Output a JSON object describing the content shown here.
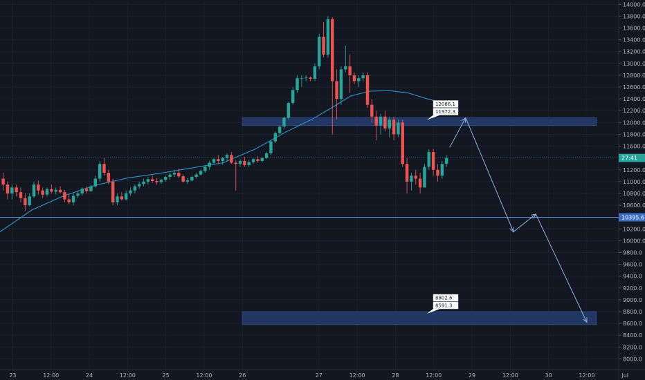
{
  "chart_data": {
    "type": "candlestick",
    "price_axis": {
      "min": 7900,
      "max": 14050,
      "ticks": [
        8000,
        8200,
        8400,
        8600,
        8800,
        9000,
        9200,
        9400,
        9600,
        9800,
        10000,
        10200,
        10400,
        10600,
        10800,
        11000,
        11200,
        11400,
        11600,
        11800,
        12000,
        12200,
        12400,
        12600,
        12800,
        13000,
        13200,
        13400,
        13600,
        13800,
        14000
      ],
      "tick_labels": [
        "8000.0",
        "8200.0",
        "8400.0",
        "8600.0",
        "8800.0",
        "9000.0",
        "9200.0",
        "9400.0",
        "9600.0",
        "9800.0",
        "10000.0",
        "10200.0",
        "10400.0",
        "10600.0",
        "10800.0",
        "11000.0",
        "11200.0",
        "11400.0",
        "11600.0",
        "11800.0",
        "12000.0",
        "12200.0",
        "12400.0",
        "12600.0",
        "12800.0",
        "13000.0",
        "13200.0",
        "13400.0",
        "13600.0",
        "13800.0",
        "14000.0"
      ]
    },
    "time_axis": {
      "unit": "hours since Jun 23 00:00",
      "min": -4,
      "max": 190,
      "ticks": [
        {
          "t": 0,
          "label": "23"
        },
        {
          "t": 12,
          "label": "12:00"
        },
        {
          "t": 24,
          "label": "24"
        },
        {
          "t": 36,
          "label": "12:00"
        },
        {
          "t": 48,
          "label": "25"
        },
        {
          "t": 60,
          "label": "12:00"
        },
        {
          "t": 72,
          "label": "26"
        },
        {
          "t": 96,
          "label": "27"
        },
        {
          "t": 108,
          "label": "12:00"
        },
        {
          "t": 120,
          "label": "28"
        },
        {
          "t": 132,
          "label": "12:00"
        },
        {
          "t": 144,
          "label": "29"
        },
        {
          "t": 156,
          "label": "12:00"
        },
        {
          "t": 168,
          "label": "30"
        },
        {
          "t": 180,
          "label": "12:00"
        },
        {
          "t": 192,
          "label": "Jul"
        }
      ]
    },
    "current_price_label": "27:41",
    "current_price": 11400,
    "support_label": "10395.6",
    "support_price": 10395.6,
    "zones": [
      {
        "from_t": 72,
        "to_t": 183,
        "low": 11950,
        "high": 12080,
        "labels": [
          "12086.1",
          "11972.3"
        ]
      },
      {
        "from_t": 72,
        "to_t": 183,
        "low": 8580,
        "high": 8800,
        "labels": [
          "8802.6",
          "8591.3"
        ]
      }
    ],
    "projection_path": [
      {
        "t": 137,
        "p": 11580
      },
      {
        "t": 142,
        "p": 12080
      },
      {
        "t": 157,
        "p": 10150
      },
      {
        "t": 164,
        "p": 10450
      },
      {
        "t": 180,
        "p": 8620
      }
    ],
    "moving_average": [
      {
        "t": -4,
        "p": 10150
      },
      {
        "t": 6,
        "p": 10520
      },
      {
        "t": 16,
        "p": 10760
      },
      {
        "t": 26,
        "p": 10940
      },
      {
        "t": 36,
        "p": 11060
      },
      {
        "t": 46,
        "p": 11140
      },
      {
        "t": 56,
        "p": 11230
      },
      {
        "t": 66,
        "p": 11320
      },
      {
        "t": 76,
        "p": 11550
      },
      {
        "t": 86,
        "p": 11850
      },
      {
        "t": 94,
        "p": 12060
      },
      {
        "t": 100,
        "p": 12250
      },
      {
        "t": 106,
        "p": 12450
      },
      {
        "t": 112,
        "p": 12530
      },
      {
        "t": 118,
        "p": 12540
      },
      {
        "t": 124,
        "p": 12500
      },
      {
        "t": 130,
        "p": 12400
      },
      {
        "t": 136,
        "p": 12320
      }
    ],
    "candles": [
      [
        11050,
        11150,
        10850,
        10950
      ],
      [
        10950,
        11000,
        10700,
        10800
      ],
      [
        10800,
        10950,
        10700,
        10900
      ],
      [
        10900,
        10950,
        10750,
        10820
      ],
      [
        10820,
        10900,
        10650,
        10720
      ],
      [
        10720,
        10800,
        10500,
        10600
      ],
      [
        10600,
        10800,
        10580,
        10750
      ],
      [
        10750,
        11000,
        10720,
        10950
      ],
      [
        10950,
        11020,
        10780,
        10850
      ],
      [
        10850,
        10900,
        10720,
        10780
      ],
      [
        10780,
        10900,
        10750,
        10870
      ],
      [
        10870,
        10950,
        10800,
        10830
      ],
      [
        10830,
        10900,
        10780,
        10860
      ],
      [
        10860,
        10920,
        10800,
        10820
      ],
      [
        10820,
        10860,
        10650,
        10700
      ],
      [
        10700,
        10780,
        10620,
        10650
      ],
      [
        10650,
        10800,
        10600,
        10760
      ],
      [
        10760,
        10850,
        10720,
        10800
      ],
      [
        10800,
        10900,
        10760,
        10880
      ],
      [
        10880,
        10920,
        10800,
        10840
      ],
      [
        10840,
        10950,
        10820,
        10920
      ],
      [
        10920,
        11100,
        10900,
        11050
      ],
      [
        11050,
        11350,
        11000,
        11300
      ],
      [
        11300,
        11400,
        11100,
        11150
      ],
      [
        11150,
        11200,
        10950,
        11000
      ],
      [
        11000,
        11050,
        10600,
        10650
      ],
      [
        10650,
        10800,
        10600,
        10750
      ],
      [
        10750,
        10820,
        10680,
        10700
      ],
      [
        10700,
        10850,
        10680,
        10800
      ],
      [
        10800,
        10900,
        10760,
        10850
      ],
      [
        10850,
        10950,
        10800,
        10920
      ],
      [
        10920,
        11000,
        10880,
        10960
      ],
      [
        10960,
        11050,
        10920,
        11000
      ],
      [
        11000,
        11080,
        10950,
        11040
      ],
      [
        11040,
        11100,
        10980,
        11010
      ],
      [
        11010,
        11060,
        10950,
        10990
      ],
      [
        10990,
        11050,
        10960,
        11030
      ],
      [
        11030,
        11100,
        11000,
        11080
      ],
      [
        11080,
        11150,
        11030,
        11120
      ],
      [
        11120,
        11200,
        11080,
        11150
      ],
      [
        11150,
        11220,
        11060,
        11090
      ],
      [
        11090,
        11120,
        10980,
        11000
      ],
      [
        11000,
        11060,
        10960,
        11020
      ],
      [
        11020,
        11100,
        11000,
        11080
      ],
      [
        11080,
        11150,
        11050,
        11120
      ],
      [
        11120,
        11200,
        11100,
        11180
      ],
      [
        11180,
        11280,
        11150,
        11250
      ],
      [
        11250,
        11350,
        11200,
        11320
      ],
      [
        11320,
        11400,
        11280,
        11380
      ],
      [
        11380,
        11450,
        11300,
        11350
      ],
      [
        11350,
        11420,
        11280,
        11400
      ],
      [
        11400,
        11480,
        11350,
        11450
      ],
      [
        11450,
        11500,
        11300,
        11320
      ],
      [
        11320,
        11360,
        10850,
        11300
      ],
      [
        11300,
        11380,
        11250,
        11350
      ],
      [
        11350,
        11420,
        11250,
        11280
      ],
      [
        11280,
        11360,
        11250,
        11330
      ],
      [
        11330,
        11400,
        11300,
        11380
      ],
      [
        11380,
        11430,
        11320,
        11350
      ],
      [
        11350,
        11420,
        11330,
        11400
      ],
      [
        11400,
        11500,
        11380,
        11480
      ],
      [
        11480,
        11700,
        11450,
        11680
      ],
      [
        11680,
        11850,
        11650,
        11820
      ],
      [
        11820,
        11950,
        11800,
        11930
      ],
      [
        11930,
        12100,
        11900,
        12080
      ],
      [
        12080,
        12350,
        12050,
        12330
      ],
      [
        12330,
        12600,
        12300,
        12550
      ],
      [
        12550,
        12800,
        12500,
        12750
      ],
      [
        12750,
        12800,
        12600,
        12750
      ],
      [
        12750,
        12800,
        12700,
        12760
      ],
      [
        12760,
        12780,
        12700,
        12740
      ],
      [
        12740,
        13000,
        12700,
        12950
      ],
      [
        12950,
        13500,
        12900,
        13450
      ],
      [
        13450,
        13700,
        13100,
        13150
      ],
      [
        13150,
        13800,
        13100,
        13750
      ],
      [
        13750,
        13780,
        11800,
        12700
      ],
      [
        12700,
        12900,
        12050,
        12400
      ],
      [
        12400,
        12950,
        12300,
        12900
      ],
      [
        12900,
        13300,
        12850,
        12950
      ],
      [
        12950,
        13150,
        12500,
        12800
      ],
      [
        12800,
        12850,
        12650,
        12700
      ],
      [
        12700,
        12800,
        12600,
        12750
      ],
      [
        12750,
        12850,
        12700,
        12800
      ],
      [
        12800,
        12850,
        12250,
        12300
      ],
      [
        12300,
        12400,
        12000,
        12100
      ],
      [
        12100,
        12200,
        11700,
        11950
      ],
      [
        11950,
        12150,
        11800,
        12100
      ],
      [
        12100,
        12200,
        11850,
        11900
      ],
      [
        11900,
        12100,
        11750,
        12050
      ],
      [
        12050,
        12100,
        11700,
        11800
      ],
      [
        11800,
        12050,
        11750,
        12000
      ],
      [
        12000,
        12050,
        11250,
        11300
      ],
      [
        11300,
        11400,
        10800,
        11000
      ],
      [
        11000,
        11150,
        10850,
        11100
      ],
      [
        11100,
        11200,
        10950,
        11050
      ],
      [
        11050,
        11150,
        10800,
        10900
      ],
      [
        10900,
        11300,
        10900,
        11250
      ],
      [
        11250,
        11550,
        11200,
        11500
      ],
      [
        11500,
        11550,
        11100,
        11200
      ],
      [
        11200,
        11300,
        11000,
        11100
      ],
      [
        11100,
        11350,
        11050,
        11300
      ],
      [
        11300,
        11450,
        11250,
        11400
      ]
    ]
  }
}
